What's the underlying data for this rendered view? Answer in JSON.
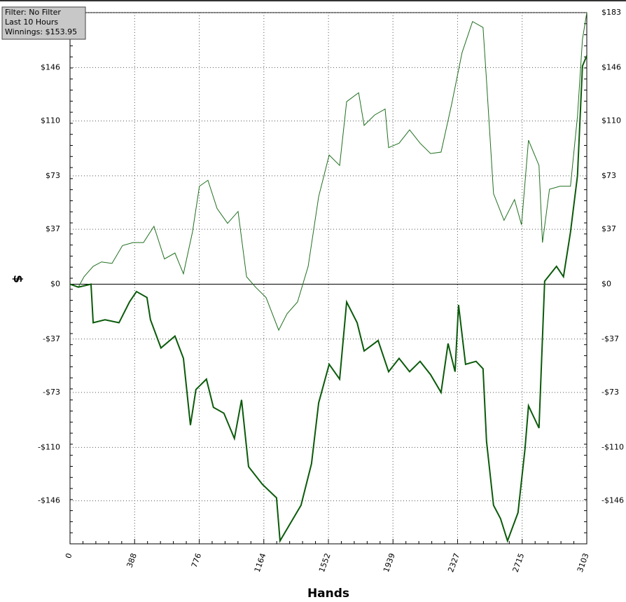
{
  "chart_data": {
    "type": "line",
    "info": [
      "Filter: No Filter",
      "Last 10 Hours",
      "Winnings: $153.95"
    ],
    "xlabel": "Hands",
    "ylabel": "$",
    "xlim": [
      0,
      3103
    ],
    "xticks": [
      0,
      388,
      776,
      1164,
      1552,
      1939,
      2327,
      2715,
      3103
    ],
    "ylim": [
      -175,
      183
    ],
    "yticks": [
      {
        "value": 183,
        "label": "$183"
      },
      {
        "value": 146,
        "label": "$146"
      },
      {
        "value": 110,
        "label": "$110"
      },
      {
        "value": 73,
        "label": "$73"
      },
      {
        "value": 37,
        "label": "$37"
      },
      {
        "value": 0,
        "label": "$0"
      },
      {
        "value": -37,
        "label": "-$37"
      },
      {
        "value": -73,
        "label": "-$73"
      },
      {
        "value": -110,
        "label": "-$110"
      },
      {
        "value": -146,
        "label": "-$146"
      }
    ],
    "grid": true,
    "series": [
      {
        "color": "#1f6f1f",
        "width": 1,
        "x": [
          0,
          50,
          84,
          139,
          189,
          252,
          315,
          378,
          441,
          504,
          567,
          630,
          681,
          735,
          777,
          828,
          883,
          946,
          1009,
          1060,
          1114,
          1177,
          1253,
          1303,
          1366,
          1430,
          1493,
          1556,
          1619,
          1661,
          1733,
          1766,
          1829,
          1892,
          1913,
          1976,
          2039,
          2102,
          2165,
          2228,
          2291,
          2354,
          2417,
          2480,
          2501,
          2543,
          2606,
          2669,
          2711,
          2753,
          2816,
          2837,
          2879,
          2942,
          3005,
          3047,
          3077,
          3103
        ],
        "values": [
          0,
          -2,
          5,
          12,
          15,
          14,
          26,
          28,
          28,
          39,
          17,
          21,
          7,
          35,
          66,
          70,
          51,
          41,
          49,
          5,
          -2,
          -9,
          -31,
          -20,
          -12,
          12,
          59,
          87,
          80,
          123,
          129,
          107,
          114,
          118,
          92,
          95,
          104,
          95,
          88,
          89,
          121,
          156,
          177,
          173,
          137,
          61,
          43,
          57,
          40,
          97,
          80,
          28,
          64,
          66,
          66,
          113,
          165,
          183
        ]
      },
      {
        "color": "#0a5a0a",
        "width": 2,
        "x": [
          0,
          50,
          126,
          139,
          210,
          294,
          357,
          399,
          462,
          483,
          546,
          630,
          681,
          723,
          756,
          819,
          861,
          924,
          987,
          1030,
          1072,
          1156,
          1240,
          1261,
          1324,
          1387,
          1450,
          1493,
          1556,
          1619,
          1661,
          1724,
          1766,
          1850,
          1913,
          1976,
          2039,
          2102,
          2165,
          2228,
          2270,
          2312,
          2333,
          2375,
          2438,
          2480,
          2501,
          2543,
          2585,
          2627,
          2690,
          2732,
          2753,
          2816,
          2850,
          2921,
          2963,
          3005,
          3047,
          3077,
          3103
        ],
        "values": [
          0,
          -2,
          0,
          -26,
          -24,
          -26,
          -12,
          -5,
          -9,
          -24,
          -43,
          -35,
          -50,
          -95,
          -71,
          -64,
          -83,
          -87,
          -104,
          -78,
          -123,
          -135,
          -144,
          -173,
          -161,
          -149,
          -121,
          -80,
          -54,
          -64,
          -12,
          -26,
          -45,
          -38,
          -59,
          -50,
          -59,
          -52,
          -61,
          -73,
          -40,
          -59,
          -14,
          -54,
          -52,
          -57,
          -106,
          -149,
          -158,
          -173,
          -154,
          -111,
          -82,
          -97,
          2,
          12,
          5,
          35,
          73,
          147,
          154
        ]
      }
    ]
  }
}
